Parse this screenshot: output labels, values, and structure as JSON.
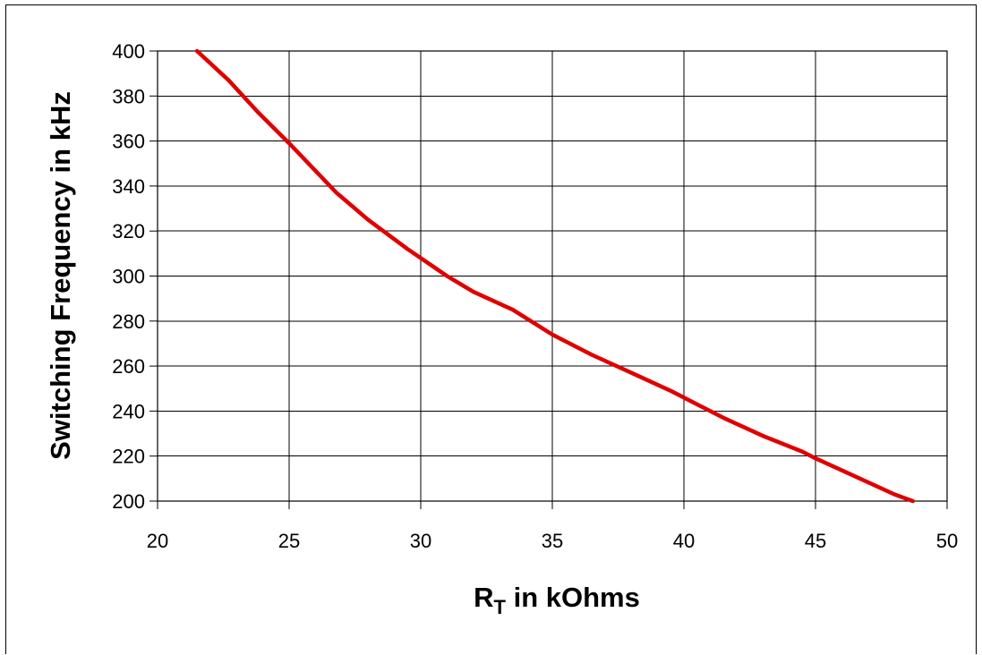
{
  "chart_data": {
    "type": "line",
    "title": "",
    "xlabel": {
      "main": "R",
      "sub": "T",
      "rest": " in kOhms"
    },
    "ylabel": "Switching Frequency in kHz",
    "xlim": [
      20,
      50
    ],
    "ylim": [
      200,
      400
    ],
    "x_ticks": [
      20,
      25,
      30,
      35,
      40,
      45,
      50
    ],
    "y_ticks": [
      400,
      380,
      360,
      340,
      320,
      300,
      280,
      260,
      240,
      220,
      200
    ],
    "grid": true,
    "series": [
      {
        "color": "#e00000",
        "points": [
          [
            21.5,
            400
          ],
          [
            22.7,
            387
          ],
          [
            23.8,
            373
          ],
          [
            25.0,
            359
          ],
          [
            25.9,
            348
          ],
          [
            26.8,
            337
          ],
          [
            28.0,
            325
          ],
          [
            29.5,
            312
          ],
          [
            30.0,
            308
          ],
          [
            31.0,
            300
          ],
          [
            32.0,
            293
          ],
          [
            33.5,
            285
          ],
          [
            35.0,
            274
          ],
          [
            36.5,
            265
          ],
          [
            38.0,
            257
          ],
          [
            39.5,
            249
          ],
          [
            40.5,
            243
          ],
          [
            41.5,
            237
          ],
          [
            43.0,
            229
          ],
          [
            44.5,
            222
          ],
          [
            45.0,
            219
          ],
          [
            46.5,
            211
          ],
          [
            48.0,
            203
          ],
          [
            48.7,
            200
          ]
        ]
      }
    ]
  }
}
